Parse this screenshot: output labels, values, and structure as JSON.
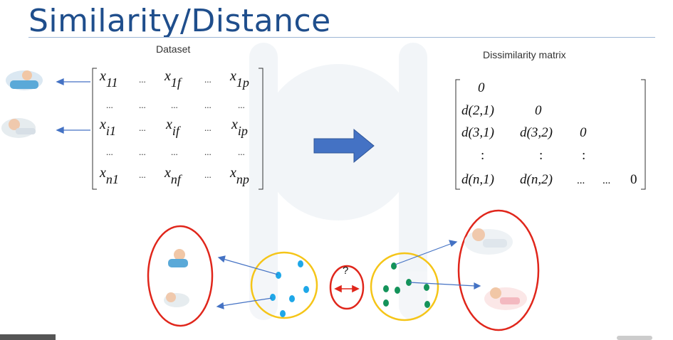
{
  "slide": {
    "title": "Similarity/Distance"
  },
  "dataset": {
    "label": "Dataset",
    "rows": [
      [
        "x",
        "11",
        "...",
        "x",
        "1f",
        "...",
        "x",
        "1p"
      ],
      [
        "...",
        "...",
        "...",
        "...",
        "..."
      ],
      [
        "x",
        "i1",
        "...",
        "x",
        "if",
        "...",
        "x",
        "ip"
      ],
      [
        "...",
        "...",
        "...",
        "...",
        "..."
      ],
      [
        "x",
        "n1",
        "...",
        "x",
        "nf",
        "...",
        "x",
        "np"
      ]
    ],
    "cells": {
      "r1c1_base": "x",
      "r1c1_sub": "11",
      "r1c2_base": "x",
      "r1c2_sub": "1f",
      "r1c3_base": "x",
      "r1c3_sub": "1p",
      "r2c1_base": "x",
      "r2c1_sub": "i1",
      "r2c2_base": "x",
      "r2c2_sub": "if",
      "r2c3_base": "x",
      "r2c3_sub": "ip",
      "r3c1_base": "x",
      "r3c1_sub": "n1",
      "r3c2_base": "x",
      "r3c2_sub": "nf",
      "r3c3_base": "x",
      "r3c3_sub": "np",
      "ellipsis": "..."
    }
  },
  "dissimilarity": {
    "label": "Dissimilarity matrix",
    "r1": "0",
    "r2c1": "d(2,1)",
    "r2c2": "0",
    "r3c1": "d(3,1)",
    "r3c2": "d(3,2)",
    "r3c3": "0",
    "vdots": ":",
    "r5c1": "d(n,1)",
    "r5c2": "d(n,2)",
    "r5c3": "...",
    "r5c4": "...",
    "r5c5": "0"
  },
  "clusters": {
    "question": "?"
  },
  "colors": {
    "title": "#1f4e8c",
    "arrow_fill": "#4472c4",
    "cluster_ring": "#f5c518",
    "selection_ring": "#e0261b",
    "blue_point": "#1ea7e8",
    "green_point": "#14935a"
  }
}
